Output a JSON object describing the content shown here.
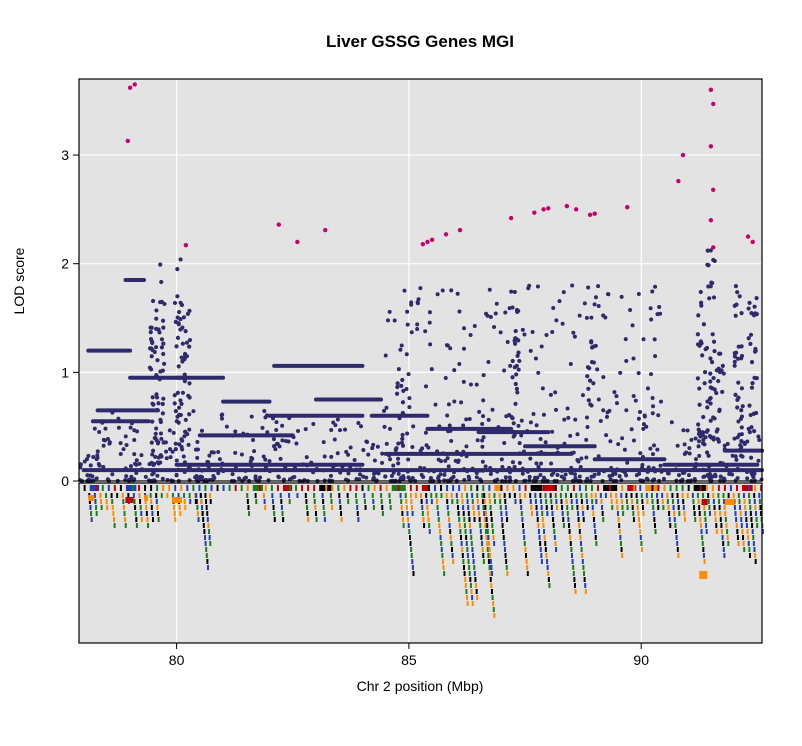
{
  "chart_data": {
    "type": "scatter",
    "title": "Liver GSSG Genes MGI",
    "xlabel": "Chr 2 position (Mbp)",
    "ylabel": "LOD score",
    "xlim": [
      77.9,
      92.6
    ],
    "ylim": [
      0,
      3.7
    ],
    "x_ticks": [
      80,
      85,
      90
    ],
    "y_ticks": [
      0,
      1,
      2,
      3
    ],
    "grid": true,
    "background": "#e3e3e3",
    "colors": {
      "points": "#2f2a6b",
      "highlight": "#c8006e",
      "gene_palette": [
        "#1f3fbf",
        "#ff8c00",
        "#1a7f1a",
        "#000000",
        "#c00000"
      ]
    },
    "highlight_points": [
      {
        "x": 79.0,
        "y": 3.62
      },
      {
        "x": 79.1,
        "y": 3.65
      },
      {
        "x": 78.95,
        "y": 3.13
      },
      {
        "x": 80.2,
        "y": 2.17
      },
      {
        "x": 82.2,
        "y": 2.36
      },
      {
        "x": 82.6,
        "y": 2.2
      },
      {
        "x": 83.2,
        "y": 2.31
      },
      {
        "x": 85.3,
        "y": 2.18
      },
      {
        "x": 85.4,
        "y": 2.2
      },
      {
        "x": 85.5,
        "y": 2.22
      },
      {
        "x": 85.8,
        "y": 2.27
      },
      {
        "x": 86.1,
        "y": 2.31
      },
      {
        "x": 87.2,
        "y": 2.42
      },
      {
        "x": 87.7,
        "y": 2.47
      },
      {
        "x": 87.9,
        "y": 2.5
      },
      {
        "x": 88.0,
        "y": 2.51
      },
      {
        "x": 88.4,
        "y": 2.53
      },
      {
        "x": 88.6,
        "y": 2.5
      },
      {
        "x": 88.9,
        "y": 2.45
      },
      {
        "x": 89.0,
        "y": 2.46
      },
      {
        "x": 89.7,
        "y": 2.52
      },
      {
        "x": 90.8,
        "y": 2.76
      },
      {
        "x": 90.9,
        "y": 3.0
      },
      {
        "x": 91.5,
        "y": 3.6
      },
      {
        "x": 91.55,
        "y": 3.47
      },
      {
        "x": 91.5,
        "y": 3.08
      },
      {
        "x": 91.55,
        "y": 2.68
      },
      {
        "x": 91.5,
        "y": 2.4
      },
      {
        "x": 91.55,
        "y": 2.15
      },
      {
        "x": 92.3,
        "y": 2.25
      },
      {
        "x": 92.4,
        "y": 2.2
      }
    ],
    "scatter_segments": [
      {
        "x0": 78.1,
        "x1": 79.0,
        "y": 1.2
      },
      {
        "x0": 78.3,
        "x1": 79.6,
        "y": 0.65
      },
      {
        "x0": 78.2,
        "x1": 79.4,
        "y": 0.55
      },
      {
        "x0": 78.9,
        "x1": 79.3,
        "y": 1.85
      },
      {
        "x0": 79.0,
        "x1": 80.2,
        "y": 0.95
      },
      {
        "x0": 80.0,
        "x1": 81.0,
        "y": 0.95
      },
      {
        "x0": 81.0,
        "x1": 82.0,
        "y": 0.73
      },
      {
        "x0": 82.1,
        "x1": 84.0,
        "y": 1.06
      },
      {
        "x0": 82.0,
        "x1": 84.0,
        "y": 0.6
      },
      {
        "x0": 84.2,
        "x1": 85.4,
        "y": 0.6
      },
      {
        "x0": 85.4,
        "x1": 87.2,
        "y": 0.48
      },
      {
        "x0": 86.5,
        "x1": 88.0,
        "y": 0.45
      },
      {
        "x0": 87.5,
        "x1": 89.0,
        "y": 0.32
      },
      {
        "x0": 89.0,
        "x1": 90.5,
        "y": 0.2
      },
      {
        "x0": 90.5,
        "x1": 92.5,
        "y": 0.15
      },
      {
        "x0": 78.0,
        "x1": 92.6,
        "y": 0.1
      },
      {
        "x0": 80.0,
        "x1": 84.0,
        "y": 0.15
      },
      {
        "x0": 84.5,
        "x1": 88.5,
        "y": 0.25
      },
      {
        "x0": 91.8,
        "x1": 92.6,
        "y": 0.28
      },
      {
        "x0": 80.5,
        "x1": 82.5,
        "y": 0.42
      },
      {
        "x0": 83.0,
        "x1": 84.4,
        "y": 0.75
      }
    ],
    "scatter_columns": [
      {
        "x": 79.5,
        "y0": 0.1,
        "y1": 1.7
      },
      {
        "x": 79.65,
        "y0": 0.2,
        "y1": 2.0
      },
      {
        "x": 80.05,
        "y0": 0.1,
        "y1": 2.1
      },
      {
        "x": 80.2,
        "y0": 0.4,
        "y1": 1.65
      },
      {
        "x": 84.8,
        "y0": 0.1,
        "y1": 1.1
      },
      {
        "x": 87.3,
        "y0": 0.1,
        "y1": 1.6
      },
      {
        "x": 91.3,
        "y0": 0.3,
        "y1": 1.75
      },
      {
        "x": 91.5,
        "y0": 0.1,
        "y1": 2.2
      },
      {
        "x": 91.7,
        "y0": 0.5,
        "y1": 1.2
      },
      {
        "x": 92.1,
        "y0": 0.1,
        "y1": 1.9
      },
      {
        "x": 92.4,
        "y0": 0.2,
        "y1": 1.7
      },
      {
        "x": 88.9,
        "y0": 0.6,
        "y1": 1.3
      }
    ],
    "gene_track": {
      "xlim": [
        77.9,
        92.6
      ],
      "dense_regions": [
        [
          84.8,
          86.6
        ],
        [
          86.6,
          92.6
        ]
      ]
    }
  }
}
